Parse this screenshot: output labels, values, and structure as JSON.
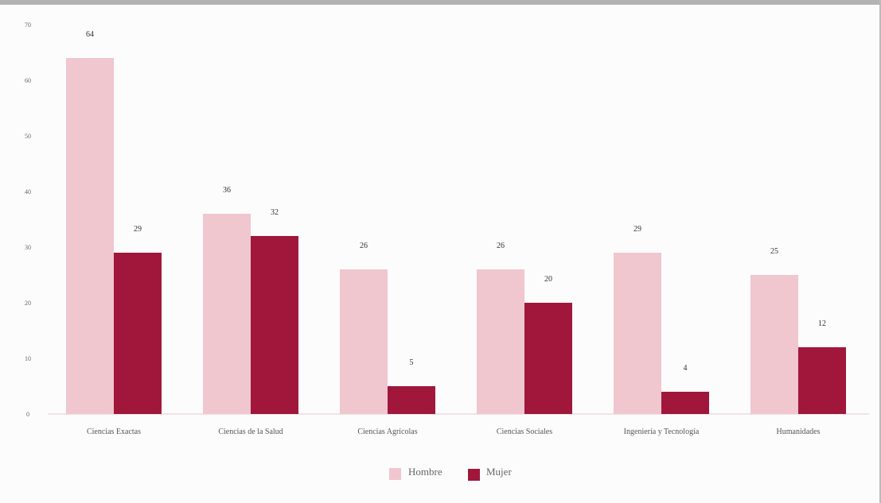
{
  "chart_data": {
    "type": "bar",
    "categories": [
      "Ciencias Exactas",
      "Ciencias de la Salud",
      "Ciencias Agrícolas",
      "Ciencias Sociales",
      "Ingeniería y Tecnología",
      "Humanidades"
    ],
    "series": [
      {
        "name": "Hombre",
        "values": [
          64,
          36,
          26,
          26,
          29,
          25
        ],
        "labels": [
          "64",
          "36",
          "26",
          "26",
          "29",
          "25"
        ],
        "color": "#f0c6cf"
      },
      {
        "name": "Mujer",
        "values": [
          29,
          32,
          5,
          20,
          4,
          12
        ],
        "labels": [
          "29",
          "32",
          "5",
          "20",
          "4",
          "12"
        ],
        "color": "#a0173b"
      }
    ],
    "ylim": [
      0,
      70
    ],
    "yticks": [
      "0",
      "10",
      "20",
      "30",
      "40",
      "50",
      "60",
      "70"
    ],
    "grid": false,
    "legend_position": "bottom"
  }
}
